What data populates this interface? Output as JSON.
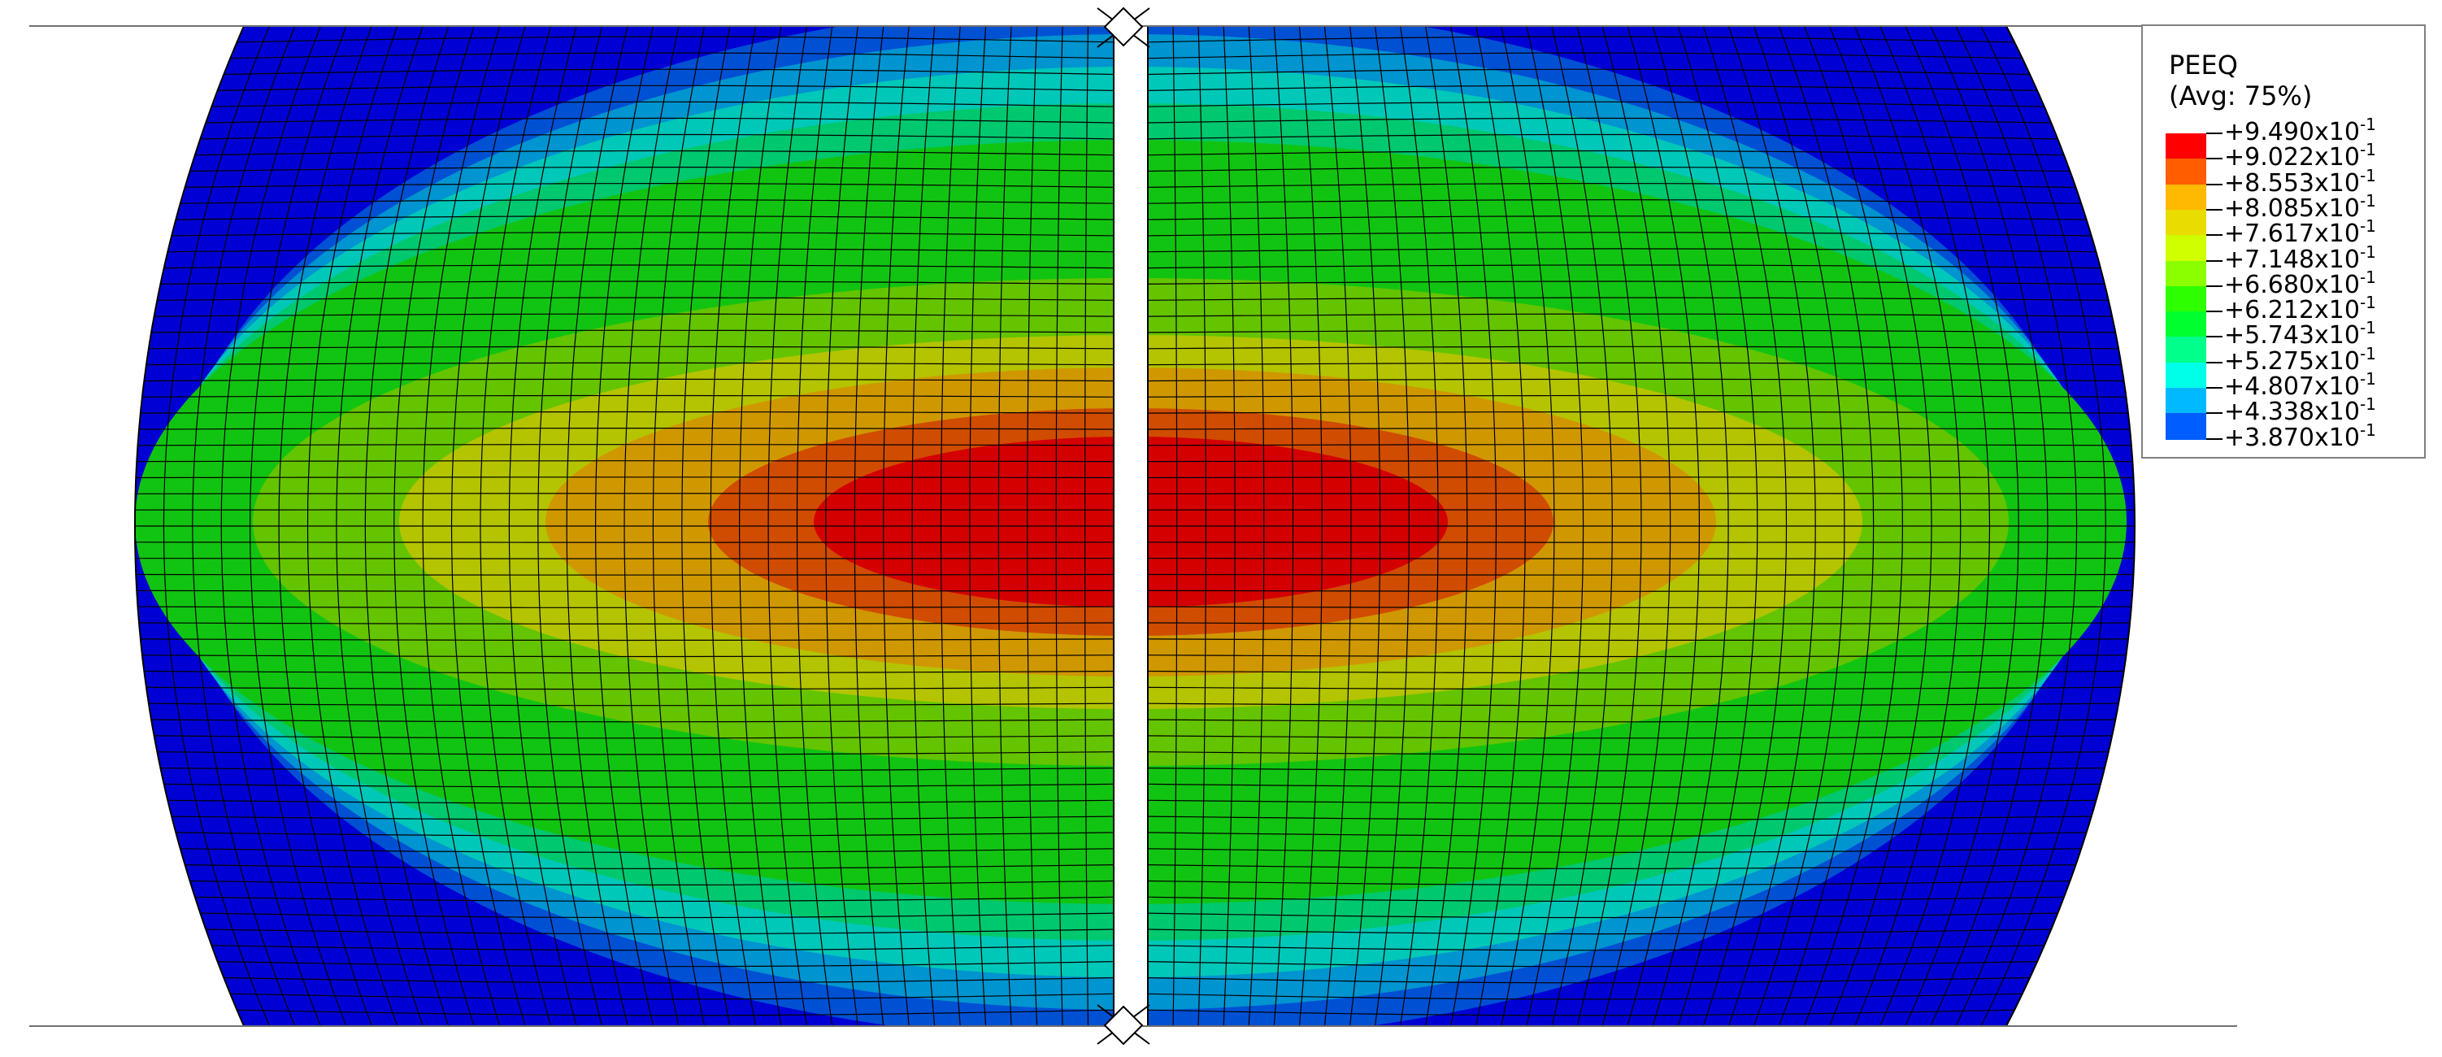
{
  "legend": {
    "variable": "PEEQ",
    "averaging": "(Avg: 75%)",
    "base": "x10",
    "entries": [
      {
        "mantissa": "+9.490",
        "exponent": "-1",
        "color": "#ff0000"
      },
      {
        "mantissa": "+9.022",
        "exponent": "-1",
        "color": "#ff5d00"
      },
      {
        "mantissa": "+8.553",
        "exponent": "-1",
        "color": "#ffb900"
      },
      {
        "mantissa": "+8.085",
        "exponent": "-1",
        "color": "#e9dd00"
      },
      {
        "mantissa": "+7.617",
        "exponent": "-1",
        "color": "#d0ff00"
      },
      {
        "mantissa": "+7.148",
        "exponent": "-1",
        "color": "#8bff00"
      },
      {
        "mantissa": "+6.680",
        "exponent": "-1",
        "color": "#2eff00"
      },
      {
        "mantissa": "+6.212",
        "exponent": "-1",
        "color": "#00ff2e"
      },
      {
        "mantissa": "+5.743",
        "exponent": "-1",
        "color": "#00ff8b"
      },
      {
        "mantissa": "+5.275",
        "exponent": "-1",
        "color": "#00ffe8"
      },
      {
        "mantissa": "+4.807",
        "exponent": "-1",
        "color": "#00b9ff"
      },
      {
        "mantissa": "+4.338",
        "exponent": "-1",
        "color": "#005dff"
      },
      {
        "mantissa": "+3.870",
        "exponent": "-1",
        "color": "#0000ff"
      }
    ]
  },
  "contour_colors": [
    "#0000d4",
    "#0050d4",
    "#0094d0",
    "#00c8b8",
    "#00c86e",
    "#12c412",
    "#64c400",
    "#b4c400",
    "#d09800",
    "#d04c00",
    "#d40000"
  ],
  "mesh_color": "#000000",
  "gap_color": "#ffffff"
}
